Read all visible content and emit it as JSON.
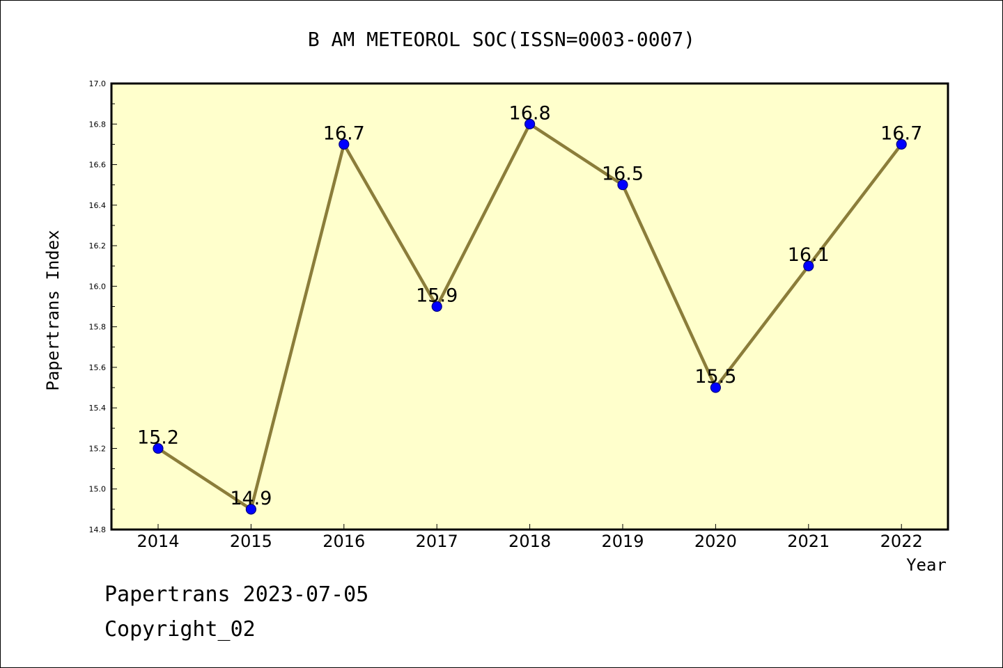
{
  "colors": {
    "plot_background": "#ffffcc",
    "line": "#8b7d3a",
    "marker_fill": "#0000ff",
    "marker_stroke": "#000080",
    "axis": "#000000"
  },
  "chart_data": {
    "type": "line",
    "title": "B AM METEOROL SOC(ISSN=0003-0007)",
    "xlabel": "Year",
    "ylabel": "Papertrans Index",
    "categories": [
      "2014",
      "2015",
      "2016",
      "2017",
      "2018",
      "2019",
      "2020",
      "2021",
      "2022"
    ],
    "series": [
      {
        "values": [
          15.2,
          14.9,
          16.7,
          15.9,
          16.8,
          16.5,
          15.5,
          16.1,
          16.7
        ],
        "labels": [
          "15.2",
          "14.9",
          "16.7",
          "15.9",
          "16.8",
          "16.5",
          "15.5",
          "16.1",
          "16.7"
        ]
      }
    ],
    "ylim": [
      14.8,
      17.0
    ],
    "yticks": [
      "14.8",
      "15.0",
      "15.2",
      "15.4",
      "15.6",
      "15.8",
      "16.0",
      "16.2",
      "16.4",
      "16.6",
      "16.8",
      "17.0"
    ],
    "grid": false,
    "legend": "none"
  },
  "footer": {
    "line1": "Papertrans 2023-07-05",
    "line2": "Copyright_02"
  }
}
